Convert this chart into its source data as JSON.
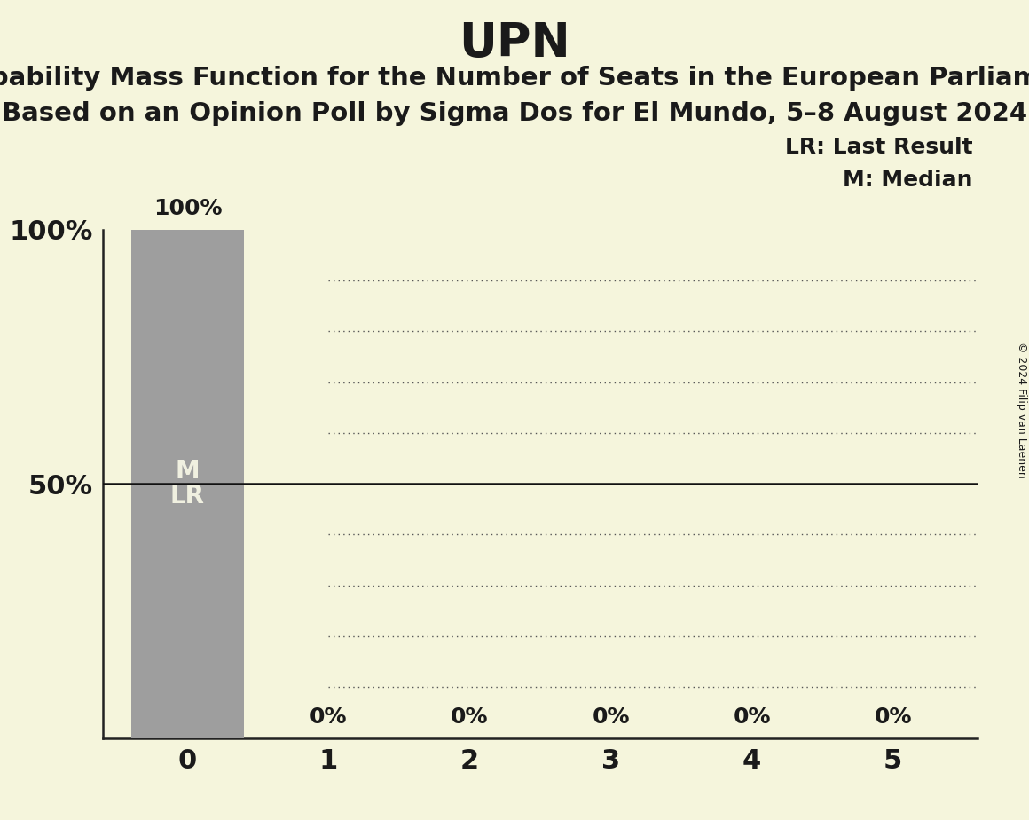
{
  "title": "UPN",
  "subtitle1": "Probability Mass Function for the Number of Seats in the European Parliament",
  "subtitle2": "Based on an Opinion Poll by Sigma Dos for El Mundo, 5–8 August 2024",
  "copyright": "© 2024 Filip van Laenen",
  "background_color": "#f5f5dc",
  "bar_color": "#9e9e9e",
  "categories": [
    0,
    1,
    2,
    3,
    4,
    5
  ],
  "values": [
    1.0,
    0.0,
    0.0,
    0.0,
    0.0,
    0.0
  ],
  "bar_labels": [
    "100%",
    "0%",
    "0%",
    "0%",
    "0%",
    "0%"
  ],
  "legend_lr": "LR: Last Result",
  "legend_m": "M: Median",
  "median_seat": 0,
  "last_result_seat": 0,
  "hline_50_color": "#111111",
  "dotted_line_color": "#555555",
  "text_color": "#1a1a1a",
  "inside_label_color": "#f0f0e0",
  "inside_label_size": 20,
  "bar_label_size": 18,
  "title_fontsize": 38,
  "subtitle_fontsize": 21,
  "axis_tick_fontsize": 22,
  "legend_fontsize": 18
}
